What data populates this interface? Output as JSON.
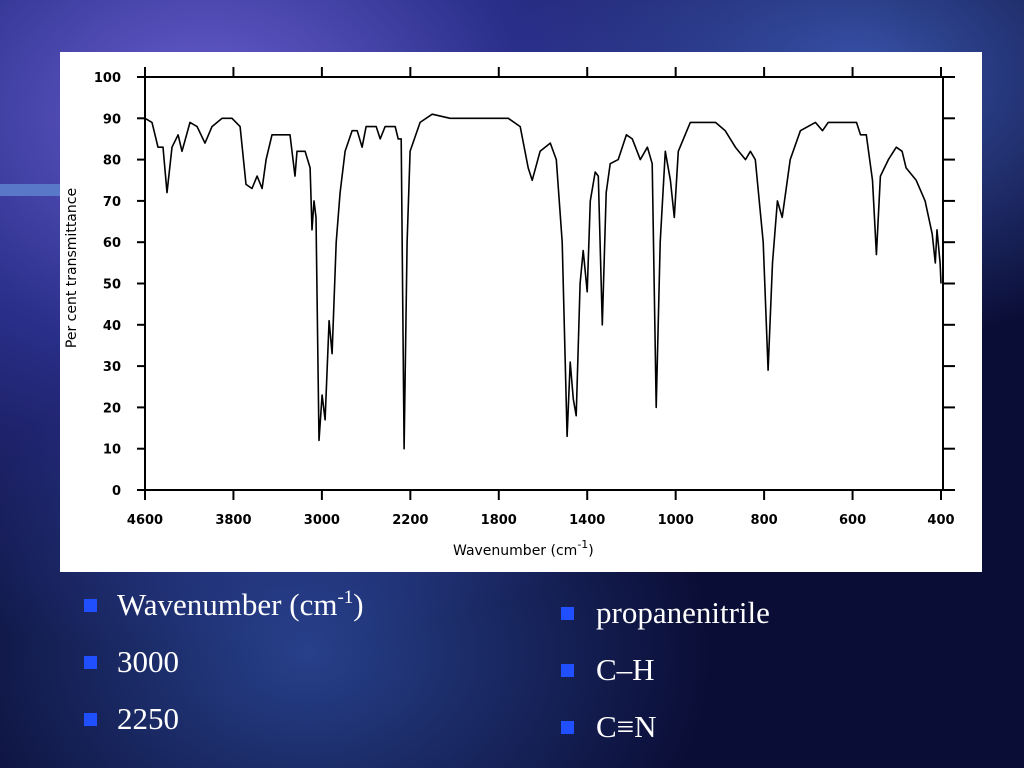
{
  "chart_data": {
    "type": "line",
    "x_label": {
      "text": "Wavenumber  (cm",
      "sup": "-1",
      "tail": ")"
    },
    "y_label": "Per cent transmittance",
    "x": [
      4600,
      4537,
      4482,
      4437,
      4401,
      4356,
      4301,
      4265,
      4193,
      4129,
      4057,
      3994,
      3903,
      3813,
      3740,
      3686,
      3632,
      3586,
      3541,
      3505,
      3451,
      3333,
      3288,
      3243,
      3225,
      3152,
      3107,
      3089,
      3071,
      3053,
      3026,
      2998,
      2971,
      2935,
      2908,
      2871,
      2835,
      2790,
      2727,
      2681,
      2636,
      2600,
      2509,
      2473,
      2428,
      2337,
      2310,
      2283,
      2256,
      2229,
      2202,
      2156,
      2101,
      2020,
      1929,
      1839,
      1757,
      1703,
      1667,
      1649,
      1613,
      1567,
      1540,
      1513,
      1491,
      1477,
      1463,
      1450,
      1432,
      1418,
      1400,
      1386,
      1364,
      1350,
      1332,
      1314,
      1296,
      1260,
      1223,
      1196,
      1160,
      1128,
      1106,
      1088,
      1070,
      1047,
      1024,
      1006,
      994,
      967,
      944,
      910,
      888,
      865,
      842,
      831,
      820,
      802,
      791,
      781,
      770,
      759,
      741,
      718,
      684,
      668,
      655,
      616,
      591,
      582,
      569,
      555,
      546,
      537,
      519,
      501,
      488,
      479,
      456,
      436,
      420,
      413,
      409,
      402,
      400
    ],
    "values": [
      90,
      89,
      83,
      83,
      72,
      83,
      86,
      82,
      89,
      88,
      84,
      88,
      90,
      90,
      88,
      74,
      73,
      76,
      73,
      80,
      86,
      86,
      86,
      76,
      82,
      82,
      78,
      63,
      70,
      66,
      12,
      23,
      17,
      41,
      33,
      60,
      72,
      82,
      87,
      87,
      83,
      88,
      88,
      85,
      88,
      88,
      85,
      85,
      10,
      60,
      82,
      89,
      91,
      90,
      90,
      90,
      90,
      88,
      78,
      75,
      82,
      84,
      80,
      60,
      13,
      31,
      22,
      18,
      50,
      58,
      48,
      70,
      77,
      76,
      40,
      72,
      79,
      80,
      86,
      85,
      80,
      83,
      79,
      20,
      60,
      82,
      75,
      66,
      82,
      89,
      89,
      89,
      87,
      83,
      80,
      82,
      80,
      60,
      29,
      55,
      70,
      66,
      80,
      87,
      89,
      87,
      89,
      89,
      89,
      86,
      86,
      75,
      57,
      76,
      80,
      83,
      82,
      78,
      75,
      70,
      62,
      55,
      63,
      55,
      50
    ],
    "color": "#000000",
    "xlim": [
      4600,
      400
    ],
    "xticks": [
      4600,
      3800,
      3000,
      2200,
      1800,
      1400,
      1000,
      800,
      600,
      400
    ],
    "ylim": [
      0,
      100
    ],
    "yticks": [
      0,
      10,
      20,
      30,
      40,
      50,
      60,
      70,
      80,
      90,
      100
    ]
  },
  "bullets_left": [
    {
      "text": "Wavenumber (cm",
      "sup": "-1",
      "tail": ")"
    },
    {
      "text": "3000"
    },
    {
      "text": "2250"
    }
  ],
  "bullets_right": [
    {
      "text": "propanenitrile"
    },
    {
      "text": "C–H"
    },
    {
      "text": "C≡N"
    }
  ]
}
